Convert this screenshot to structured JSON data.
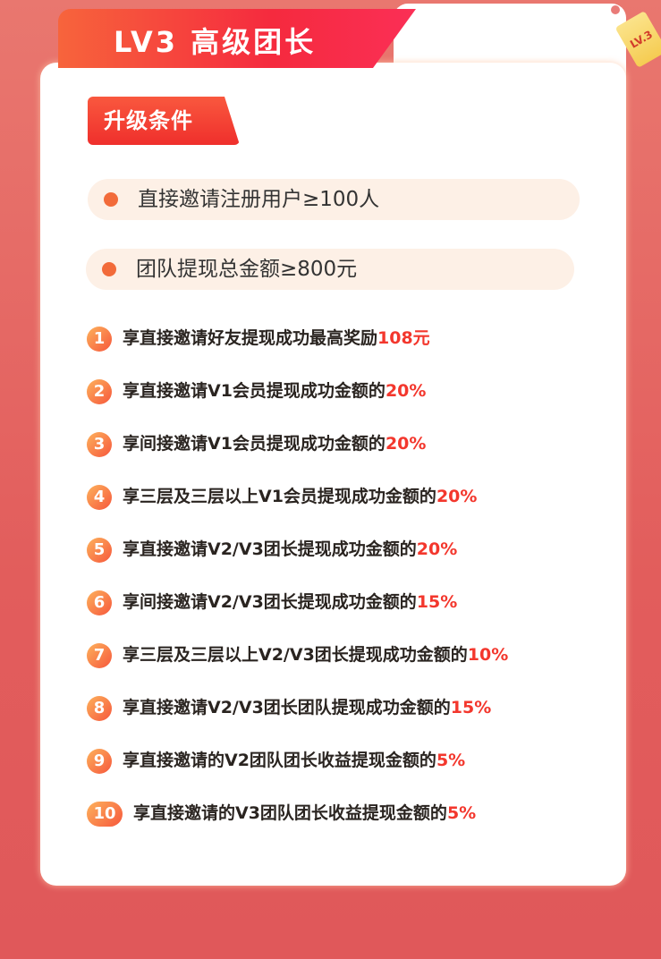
{
  "header": {
    "title": "LV3 高级团长",
    "tag": "LV.3"
  },
  "conditions": {
    "title": "升级条件",
    "items": [
      "直接邀请注册用户≥100人",
      "团队提现总金额≥800元"
    ]
  },
  "benefits": [
    {
      "n": "1",
      "text": "享直接邀请好友提现成功最高奖励",
      "value": "108元"
    },
    {
      "n": "2",
      "text": "享直接邀请V1会员提现成功金额的",
      "value": "20%"
    },
    {
      "n": "3",
      "text": "享间接邀请V1会员提现成功金额的",
      "value": "20%"
    },
    {
      "n": "4",
      "text": "享三层及三层以上V1会员提现成功金额的",
      "value": "20%"
    },
    {
      "n": "5",
      "text": "享直接邀请V2/V3团长提现成功金额的",
      "value": "20%"
    },
    {
      "n": "6",
      "text": "享间接邀请V2/V3团长提现成功金额的",
      "value": "15%"
    },
    {
      "n": "7",
      "text": "享三层及三层以上V2/V3团长提现成功金额的",
      "value": "10%"
    },
    {
      "n": "8",
      "text": "享直接邀请V2/V3团长团队提现成功金额的",
      "value": "15%"
    },
    {
      "n": "9",
      "text": "享直接邀请的V2团队团长收益提现金额的",
      "value": "5%"
    },
    {
      "n": "10",
      "text": "享直接邀请的V3团队团长收益提现金额的",
      "value": "5%"
    }
  ],
  "colors": {
    "accent": "#f3372d",
    "header": "#f52a3e",
    "pill": "#fdf0e6"
  }
}
